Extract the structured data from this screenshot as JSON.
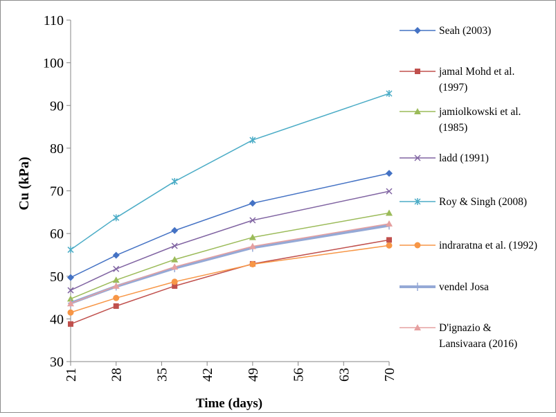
{
  "chart_data": {
    "type": "line",
    "title": "",
    "xlabel": "Time (days)",
    "ylabel": "Cu (kPa)",
    "x_ticks": [
      21,
      28,
      35,
      42,
      49,
      56,
      63,
      70
    ],
    "y_ticks": [
      30,
      40,
      50,
      60,
      70,
      80,
      90,
      100,
      110
    ],
    "xlim": [
      21,
      70
    ],
    "ylim": [
      30,
      110
    ],
    "grid": false,
    "legend_position": "right",
    "x": [
      21,
      28,
      37,
      49,
      70
    ],
    "series": [
      {
        "name": "Seah (2003)",
        "values": [
          49.7,
          54.9,
          60.7,
          67.1,
          74.1
        ],
        "color": "#4472c4",
        "marker": "diamond"
      },
      {
        "name": "jamal Mohd et al. (1997)",
        "values": [
          38.8,
          43.0,
          47.7,
          52.9,
          58.5
        ],
        "color": "#c0504d",
        "marker": "square"
      },
      {
        "name": "jamiolkowski et al. (1985)",
        "values": [
          44.7,
          49.1,
          53.9,
          59.1,
          64.8
        ],
        "color": "#9bbb59",
        "marker": "triangle"
      },
      {
        "name": "ladd (1991)",
        "values": [
          46.7,
          51.7,
          57.1,
          63.1,
          69.9
        ],
        "color": "#8064a2",
        "marker": "x"
      },
      {
        "name": "Roy & Singh (2008)",
        "values": [
          56.2,
          63.7,
          72.2,
          81.9,
          92.8
        ],
        "color": "#4bacc6",
        "marker": "star"
      },
      {
        "name": "indraratna et al. (1992)",
        "values": [
          41.5,
          44.9,
          48.7,
          52.8,
          57.2
        ],
        "color": "#f79646",
        "marker": "circle"
      },
      {
        "name": "vendel Josa",
        "values": [
          43.7,
          47.6,
          51.9,
          56.7,
          61.9
        ],
        "color": "#95a9d6",
        "marker": "plus",
        "width": 4
      },
      {
        "name": "D'ignazio & Lansivaara (2016)",
        "values": [
          43.6,
          47.7,
          52.2,
          57.0,
          62.3
        ],
        "color": "#e6a0a0",
        "marker": "triangle"
      }
    ],
    "legend_lines": [
      [
        "Seah (2003)"
      ],
      [
        "jamal Mohd et al.",
        "(1997)"
      ],
      [
        "jamiolkowski et al.",
        "(1985)"
      ],
      [
        "ladd (1991)"
      ],
      [
        "Roy & Singh (2008)"
      ],
      [
        "indraratna et al. (1992)"
      ],
      [
        "vendel Josa"
      ],
      [
        "D'ignazio &",
        "Lansivaara (2016)"
      ]
    ]
  }
}
